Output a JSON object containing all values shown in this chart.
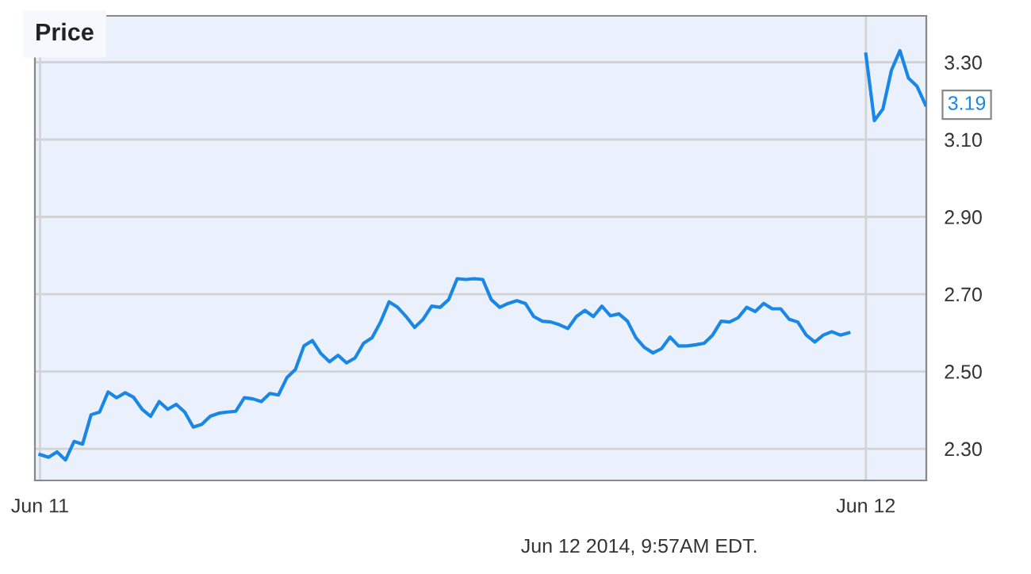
{
  "chart_data": {
    "type": "line",
    "title": "Price",
    "categories": [
      "Jun 11",
      null,
      null,
      null,
      null,
      null,
      null,
      null,
      null,
      null,
      null,
      null,
      null,
      null,
      null,
      null,
      null,
      null,
      null,
      null,
      null,
      null,
      null,
      null,
      null,
      null,
      null,
      null,
      null,
      null,
      null,
      null,
      null,
      null,
      null,
      null,
      null,
      null,
      null,
      null,
      null,
      null,
      null,
      null,
      null,
      null,
      null,
      null,
      null,
      null,
      null,
      null,
      null,
      null,
      null,
      null,
      null,
      null,
      null,
      null,
      null,
      null,
      null,
      null,
      null,
      null,
      null,
      null,
      null,
      null,
      null,
      null,
      null,
      null,
      null,
      null,
      null,
      null,
      null,
      null,
      null,
      null,
      null,
      null,
      null,
      null,
      null,
      null,
      null,
      null,
      null,
      null,
      null,
      null,
      null,
      null,
      null,
      "Jun 12",
      null,
      null,
      null,
      null,
      null,
      null,
      null
    ],
    "series": [
      {
        "color": "#1a87e6",
        "values": [
          2.285,
          2.278,
          2.292,
          2.271,
          2.319,
          2.312,
          2.388,
          2.395,
          2.447,
          2.432,
          2.445,
          2.433,
          2.402,
          2.384,
          2.422,
          2.402,
          2.415,
          2.395,
          2.356,
          2.363,
          2.384,
          2.392,
          2.395,
          2.397,
          2.432,
          2.429,
          2.422,
          2.443,
          2.439,
          2.484,
          2.505,
          2.566,
          2.58,
          2.546,
          2.525,
          2.542,
          2.522,
          2.535,
          2.573,
          2.587,
          2.628,
          2.68,
          2.666,
          2.642,
          2.614,
          2.635,
          2.669,
          2.666,
          2.686,
          2.74,
          2.738,
          2.74,
          2.738,
          2.686,
          2.666,
          2.676,
          2.683,
          2.676,
          2.642,
          2.63,
          2.628,
          2.621,
          2.611,
          2.642,
          2.658,
          2.642,
          2.669,
          2.644,
          2.649,
          2.63,
          2.587,
          2.562,
          2.548,
          2.559,
          2.589,
          2.566,
          2.566,
          2.569,
          2.573,
          2.594,
          2.63,
          2.628,
          2.639,
          2.666,
          2.655,
          2.676,
          2.662,
          2.662,
          2.635,
          2.628,
          2.594,
          2.576,
          2.594,
          2.603,
          2.594,
          2.6,
          null,
          3.321,
          3.149,
          3.179,
          3.279,
          3.33,
          3.259,
          3.238,
          3.19
        ]
      }
    ],
    "ylim": [
      2.218,
      3.42
    ],
    "yticks": [
      {
        "value": 2.3,
        "label": "2.30"
      },
      {
        "value": 2.5,
        "label": "2.50"
      },
      {
        "value": 2.7,
        "label": "2.70"
      },
      {
        "value": 2.9,
        "label": "2.90"
      },
      {
        "value": 3.1,
        "label": "3.10"
      },
      {
        "value": 3.3,
        "label": "3.30"
      }
    ],
    "grid": true,
    "annotations": [
      "3.19",
      "Jun 12 2014, 9:57AM EDT."
    ]
  }
}
